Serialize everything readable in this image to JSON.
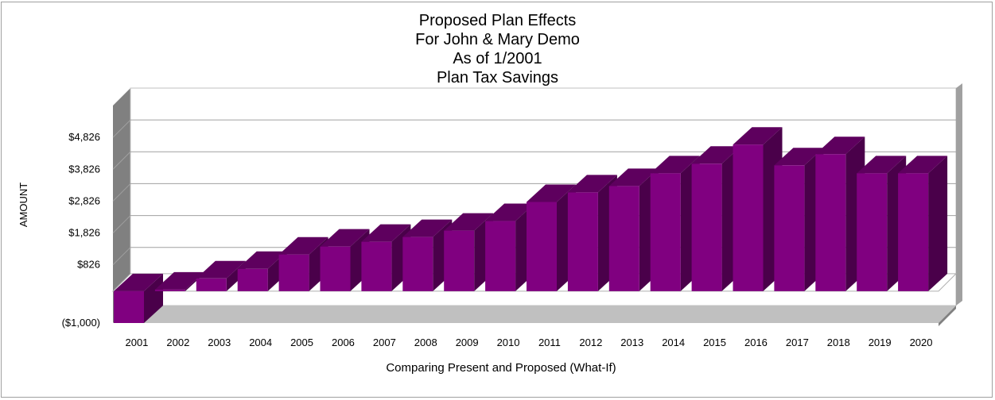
{
  "chart_data": {
    "type": "bar",
    "title_lines": [
      "Proposed Plan Effects",
      "For John & Mary Demo",
      "As of 1/2001",
      "Plan Tax Savings"
    ],
    "xlabel": "Comparing Present and Proposed (What-If)",
    "ylabel": "AMOUNT",
    "categories": [
      "2001",
      "2002",
      "2003",
      "2004",
      "2005",
      "2006",
      "2007",
      "2008",
      "2009",
      "2010",
      "2011",
      "2012",
      "2013",
      "2014",
      "2015",
      "2016",
      "2017",
      "2018",
      "2019",
      "2020"
    ],
    "values": [
      -1000,
      50,
      400,
      700,
      1150,
      1400,
      1550,
      1700,
      1900,
      2200,
      2800,
      3100,
      3300,
      3700,
      4000,
      4600,
      3950,
      4300,
      3700,
      3700
    ],
    "y_ticks": [
      -1000,
      826,
      1826,
      2826,
      3826,
      4826
    ],
    "y_tick_labels": [
      "($1,000)",
      "$826",
      "$1,826",
      "$2,826",
      "$3,826",
      "$4,826"
    ],
    "ylim": [
      -1000,
      5826
    ],
    "bar_color": "#800080",
    "bar_side_color": "#4a004a",
    "bar_top_color": "#5e005e",
    "grid": true,
    "legend": "none"
  }
}
